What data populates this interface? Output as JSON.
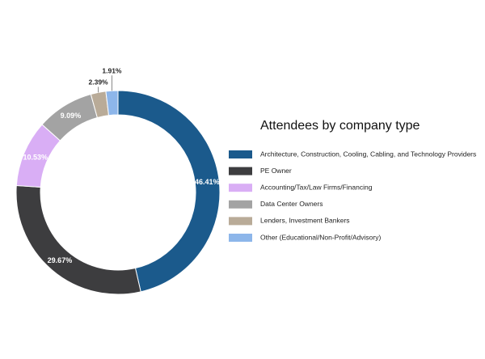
{
  "chart_data": {
    "type": "donut",
    "title": "Attendees by company type",
    "categories": [
      "Architecture, Construction, Cooling, Cabling, and Technology Providers",
      "PE Owner",
      "Accounting/Tax/Law Firms/Financing",
      "Data Center Owners",
      "Lenders, Investment Bankers",
      "Other (Educational/Non-Profit/Advisory)"
    ],
    "values": [
      46.41,
      29.67,
      10.53,
      9.09,
      2.39,
      1.91
    ],
    "value_labels": [
      "46.41%",
      "29.67%",
      "10.53%",
      "9.09%",
      "2.39%",
      "1.91%"
    ],
    "colors": [
      "#1b5a8c",
      "#3d3d3f",
      "#d9aef5",
      "#a3a3a3",
      "#b9ab98",
      "#8db6ea"
    ]
  }
}
